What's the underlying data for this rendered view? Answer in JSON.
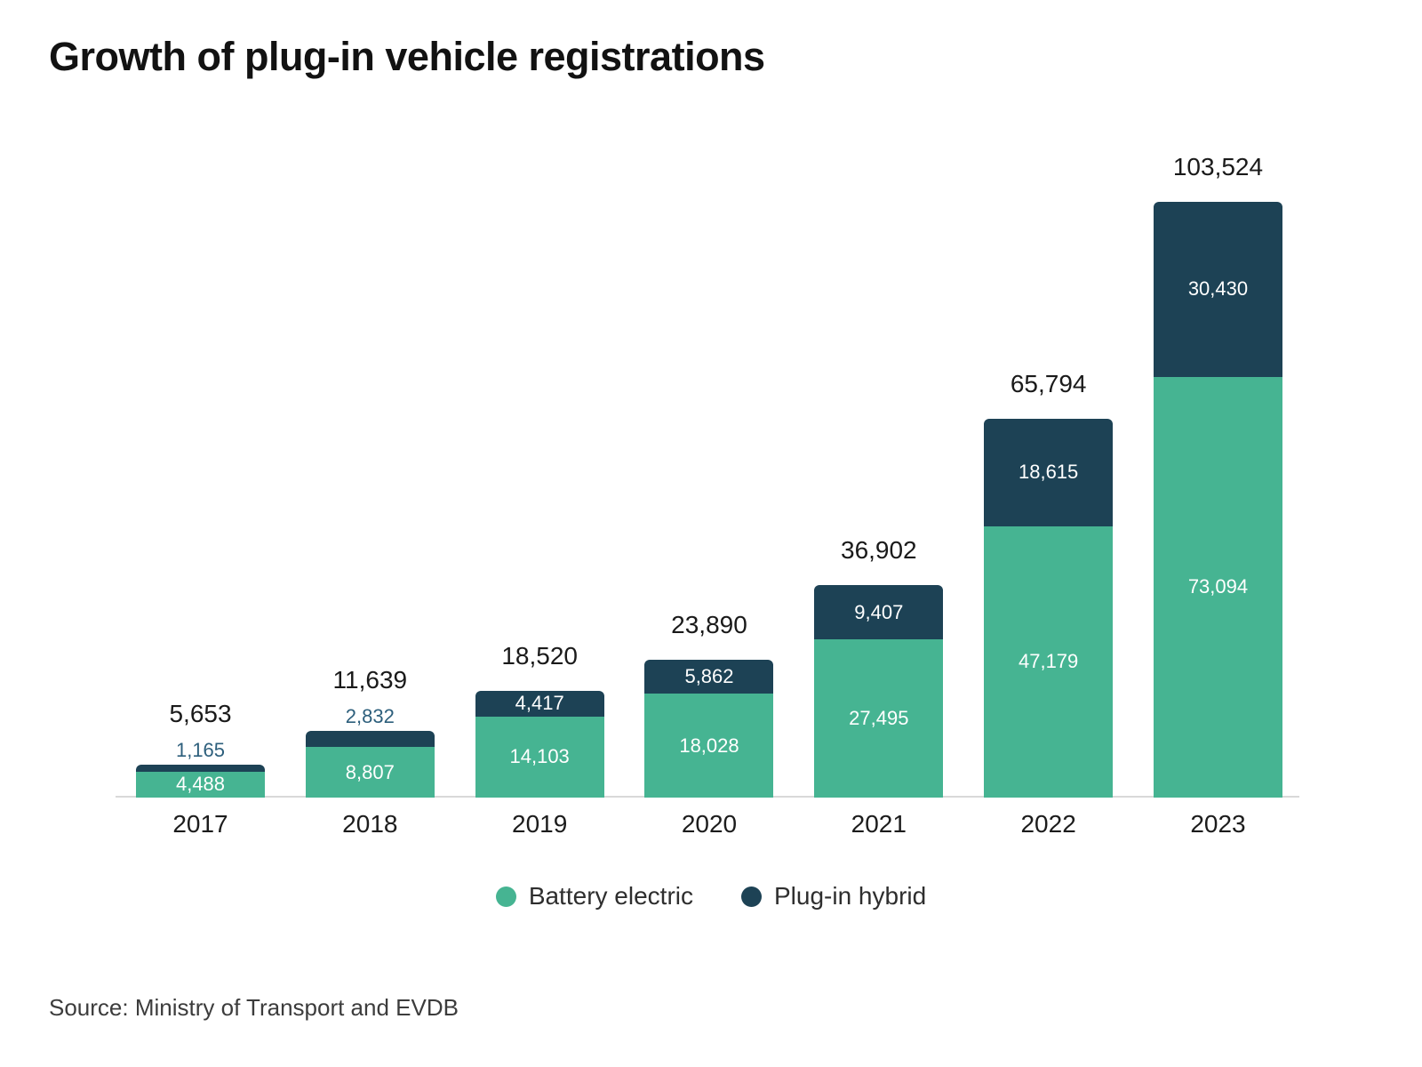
{
  "title": "Growth of plug-in vehicle registrations",
  "source": "Source: Ministry of Transport and EVDB",
  "colors": {
    "battery_electric": "#46B492",
    "plug_in_hybrid": "#1D4255",
    "phev_label_above": "#2D5F7C",
    "total_label": "#1A1A1A",
    "inner_label": "#FFFFFF",
    "axis_line": "#D9D9D9"
  },
  "legend": {
    "items": [
      {
        "label": "Battery electric",
        "color": "#46B492",
        "swatch": "circle"
      },
      {
        "label": "Plug-in hybrid",
        "color": "#1D4255",
        "swatch": "circle"
      }
    ]
  },
  "chart_data": {
    "type": "bar",
    "stacked": true,
    "title": "Growth of plug-in vehicle registrations",
    "categories": [
      "2017",
      "2018",
      "2019",
      "2020",
      "2021",
      "2022",
      "2023"
    ],
    "series": [
      {
        "name": "Battery electric",
        "color": "#46B492",
        "values": [
          4488,
          8807,
          14103,
          18028,
          27495,
          47179,
          73094
        ]
      },
      {
        "name": "Plug-in hybrid",
        "color": "#1D4255",
        "values": [
          1165,
          2832,
          4417,
          5862,
          9407,
          18615,
          30430
        ]
      }
    ],
    "totals": [
      5653,
      11639,
      18520,
      23890,
      36902,
      65794,
      103524
    ],
    "value_labels": true,
    "total_labels": true,
    "xlabel": "",
    "ylabel": "",
    "y_axis_shown": false,
    "grid": false,
    "legend_position": "bottom"
  }
}
